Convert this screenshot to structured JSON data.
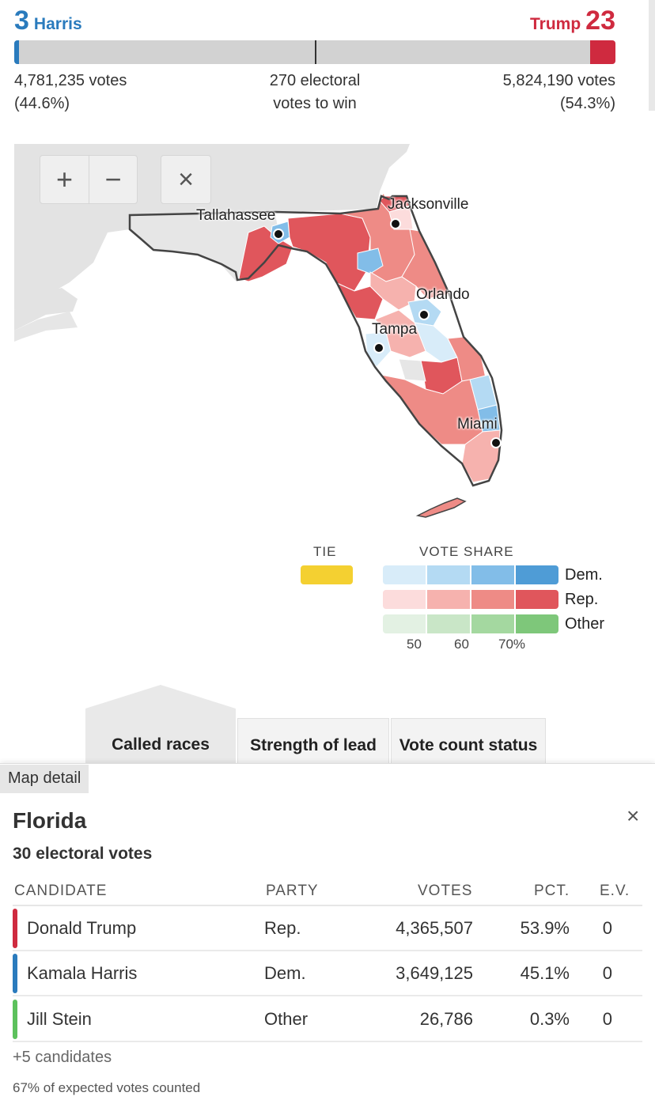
{
  "tally": {
    "dem": {
      "ev": "3",
      "name": "Harris",
      "votes": "4,781,235 votes",
      "pct": "(44.6%)",
      "bar_fraction": 0.008
    },
    "rep": {
      "ev": "23",
      "name": "Trump",
      "votes": "5,824,190 votes",
      "pct": "(54.3%)",
      "bar_fraction": 0.042
    },
    "to_win_line1": "270 electoral",
    "to_win_line2": "votes to win"
  },
  "map_controls": {
    "zoom_in": "+",
    "zoom_out": "−",
    "reset": "×"
  },
  "cities": {
    "tallahassee": "Tallahassee",
    "jacksonville": "Jacksonville",
    "orlando": "Orlando",
    "tampa": "Tampa",
    "miami": "Miami"
  },
  "legend": {
    "tie_title": "TIE",
    "vote_share_title": "VOTE SHARE",
    "rows": [
      "Dem.",
      "Rep.",
      "Other"
    ],
    "ticks": [
      "50",
      "60",
      "70%"
    ],
    "colors": {
      "tie": "#f4d031",
      "dem": [
        "#d8ecf9",
        "#b4daf3",
        "#82bde8",
        "#4f9cd6"
      ],
      "rep": [
        "#fcdcdc",
        "#f6b2ae",
        "#ee8b86",
        "#e0565c"
      ],
      "other": [
        "#e3f1e3",
        "#c9e6c7",
        "#a4d8a0",
        "#7ec77a"
      ]
    }
  },
  "tabs": {
    "called": "Called races",
    "strength": "Strength of lead",
    "vote_count": "Vote count status"
  },
  "detail": {
    "tag": "Map detail",
    "state": "Florida",
    "ev_line": "30 electoral votes",
    "close": "×",
    "headers": {
      "candidate": "CANDIDATE",
      "party": "PARTY",
      "votes": "VOTES",
      "pct": "PCT.",
      "ev": "E.V."
    },
    "rows": [
      {
        "name": "Donald Trump",
        "party": "Rep.",
        "votes": "4,365,507",
        "pct": "53.9%",
        "ev": "0",
        "color": "#cf2a3f"
      },
      {
        "name": "Kamala Harris",
        "party": "Dem.",
        "votes": "3,649,125",
        "pct": "45.1%",
        "ev": "0",
        "color": "#2a7bbd"
      },
      {
        "name": "Jill Stein",
        "party": "Other",
        "votes": "26,786",
        "pct": "0.3%",
        "ev": "0",
        "color": "#5cc15c"
      }
    ],
    "more": "+5 candidates",
    "expected": "67% of expected votes counted"
  }
}
